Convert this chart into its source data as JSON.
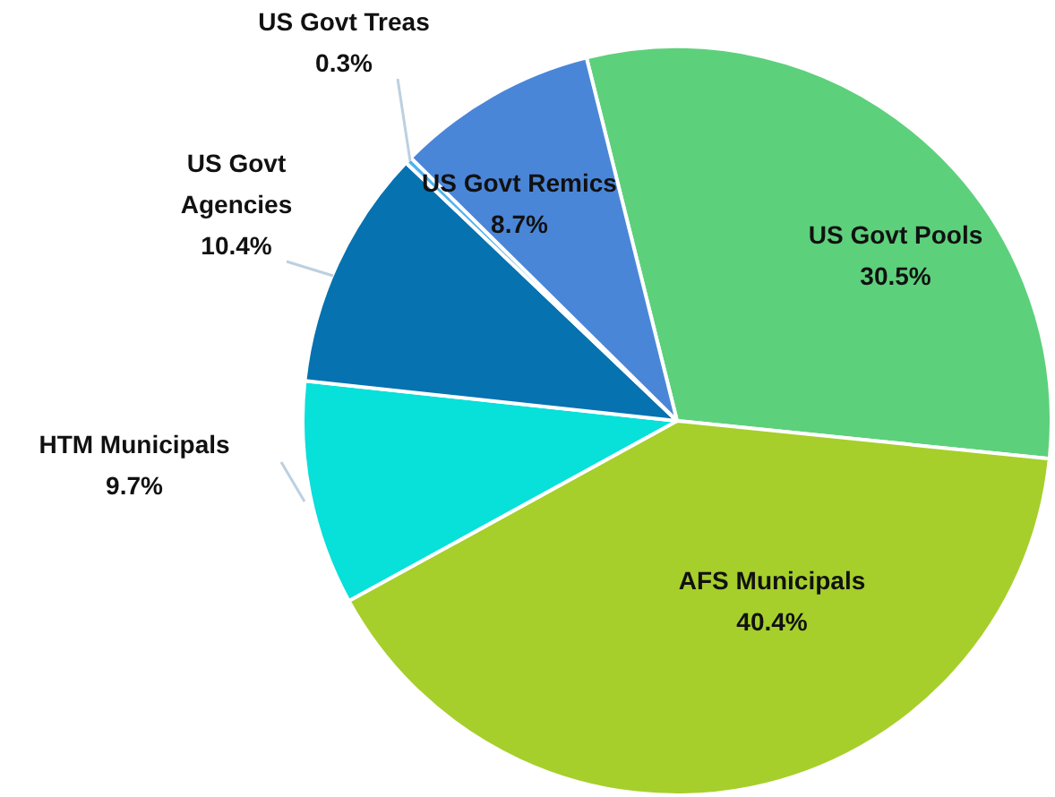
{
  "chart_data": {
    "type": "pie",
    "categories": [
      "US Govt Pools",
      "AFS Municipals",
      "HTM Municipals",
      "US Govt Agencies",
      "US Govt Treas",
      "US Govt Remics"
    ],
    "values": [
      30.5,
      40.4,
      9.7,
      10.4,
      0.3,
      8.7
    ],
    "colors": [
      "#5dd07b",
      "#a6cf2b",
      "#08e0da",
      "#0672b0",
      "#4fb3ee",
      "#4a86d8"
    ],
    "value_labels": [
      "30.5%",
      "40.4%",
      "9.7%",
      "10.4%",
      "0.3%",
      "8.7%"
    ],
    "legend": false
  }
}
